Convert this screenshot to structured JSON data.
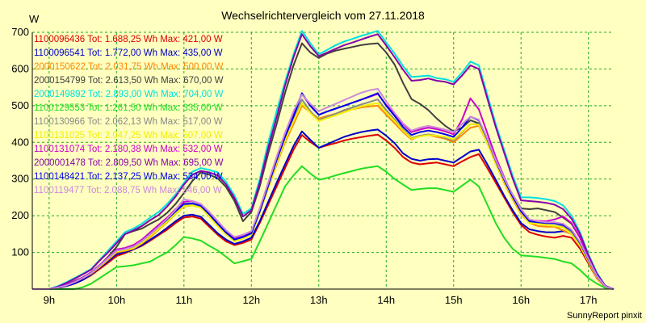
{
  "chart_data": {
    "type": "line",
    "title": "Wechselrichtervergleich vom 27.11.2018",
    "ylabel": "W",
    "xlabel": "",
    "footer": "SunnyReport pinxit",
    "ylim": [
      0,
      700
    ],
    "xlim": [
      8.75,
      17.375
    ],
    "grid": true,
    "legend_placement": "top-left",
    "y_ticks": [
      100,
      200,
      300,
      400,
      500,
      600,
      700
    ],
    "x_ticks": [
      {
        "value": 9,
        "label": "9h"
      },
      {
        "value": 10,
        "label": "10h"
      },
      {
        "value": 11,
        "label": "11h"
      },
      {
        "value": 12,
        "label": "12h"
      },
      {
        "value": 13,
        "label": "13h"
      },
      {
        "value": 14,
        "label": "14h"
      },
      {
        "value": 15,
        "label": "15h"
      },
      {
        "value": 16,
        "label": "16h"
      },
      {
        "value": 17,
        "label": "17h"
      }
    ],
    "x": [
      8.75,
      8.875,
      9.0,
      9.125,
      9.25,
      9.375,
      9.5,
      9.625,
      9.75,
      9.875,
      10.0,
      10.125,
      10.25,
      10.375,
      10.5,
      10.625,
      10.75,
      10.875,
      11.0,
      11.125,
      11.25,
      11.375,
      11.5,
      11.625,
      11.75,
      11.875,
      12.0,
      12.125,
      12.25,
      12.375,
      12.5,
      12.625,
      12.75,
      12.875,
      13.0,
      13.125,
      13.25,
      13.375,
      13.5,
      13.625,
      13.75,
      13.875,
      14.0,
      14.125,
      14.25,
      14.375,
      14.5,
      14.625,
      14.75,
      14.875,
      15.0,
      15.125,
      15.25,
      15.375,
      15.5,
      15.625,
      15.75,
      15.875,
      16.0,
      16.125,
      16.25,
      16.375,
      16.5,
      16.625,
      16.75,
      16.875,
      17.0,
      17.125,
      17.25,
      17.375
    ],
    "series": [
      {
        "name": "1100096436 Tot: 1.688,25 Wh Max: 421,00 W",
        "color": "#dd0000",
        "values": [
          0,
          0,
          0,
          3,
          8,
          15,
          25,
          38,
          55,
          72,
          90,
          98,
          108,
          118,
          132,
          147,
          162,
          180,
          195,
          198,
          192,
          170,
          148,
          130,
          120,
          126,
          135,
          180,
          230,
          280,
          330,
          380,
          420,
          401,
          385,
          392,
          398,
          405,
          410,
          414,
          418,
          421,
          405,
          385,
          360,
          345,
          340,
          343,
          345,
          340,
          335,
          348,
          360,
          368,
          330,
          290,
          250,
          210,
          175,
          155,
          148,
          143,
          140,
          145,
          140,
          110,
          70,
          30,
          6,
          0
        ]
      },
      {
        "name": "1100096541 Tot: 1.772,00 Wh Max: 435,00 W",
        "color": "#0000cc",
        "values": [
          0,
          0,
          0,
          3,
          8,
          15,
          25,
          40,
          58,
          76,
          95,
          101,
          108,
          120,
          135,
          150,
          167,
          185,
          200,
          203,
          197,
          175,
          152,
          135,
          123,
          130,
          140,
          185,
          238,
          290,
          340,
          390,
          430,
          407,
          385,
          395,
          405,
          415,
          422,
          428,
          432,
          435,
          418,
          398,
          370,
          355,
          350,
          354,
          355,
          350,
          345,
          360,
          375,
          380,
          340,
          298,
          255,
          215,
          180,
          163,
          158,
          155,
          155,
          158,
          152,
          120,
          78,
          35,
          7,
          0
        ]
      },
      {
        "name": "2000150622 Tot: 2.031,75 Wh Max: 500,00 W",
        "color": "#ff8800",
        "values": [
          0,
          0,
          0,
          4,
          10,
          19,
          30,
          42,
          60,
          80,
          100,
          104,
          110,
          124,
          142,
          162,
          182,
          205,
          225,
          228,
          222,
          200,
          174,
          152,
          135,
          143,
          152,
          210,
          275,
          340,
          400,
          450,
          500,
          482,
          465,
          472,
          478,
          485,
          490,
          495,
          498,
          500,
          475,
          452,
          428,
          408,
          418,
          420,
          415,
          410,
          400,
          420,
          440,
          445,
          398,
          342,
          290,
          245,
          205,
          180,
          172,
          170,
          170,
          160,
          150,
          118,
          75,
          32,
          7,
          0
        ]
      },
      {
        "name": "2000154799 Tot: 2.613,50 Wh Max: 670,00 W",
        "color": "#404040",
        "values": [
          0,
          0,
          0,
          5,
          12,
          22,
          32,
          45,
          65,
          88,
          115,
          150,
          158,
          165,
          178,
          190,
          208,
          232,
          262,
          295,
          318,
          312,
          302,
          278,
          240,
          185,
          210,
          280,
          370,
          450,
          535,
          610,
          670,
          645,
          630,
          642,
          650,
          655,
          660,
          665,
          668,
          670,
          645,
          612,
          562,
          518,
          505,
          488,
          465,
          445,
          430,
          440,
          460,
          452,
          405,
          350,
          300,
          258,
          220,
          218,
          220,
          215,
          210,
          195,
          178,
          140,
          90,
          40,
          8,
          0
        ]
      },
      {
        "name": "2000149892 Tot: 2.893,00 Wh Max: 704,00 W",
        "color": "#00e0e0",
        "values": [
          0,
          0,
          0,
          8,
          18,
          30,
          42,
          55,
          80,
          105,
          130,
          155,
          165,
          178,
          195,
          210,
          232,
          258,
          290,
          320,
          330,
          325,
          318,
          292,
          255,
          205,
          220,
          300,
          400,
          485,
          565,
          640,
          704,
          670,
          640,
          652,
          665,
          675,
          682,
          690,
          697,
          704,
          672,
          642,
          608,
          578,
          580,
          582,
          575,
          572,
          565,
          590,
          620,
          610,
          530,
          450,
          380,
          310,
          250,
          250,
          248,
          245,
          240,
          228,
          200,
          155,
          95,
          45,
          9,
          0
        ]
      },
      {
        "name": "1100129553 Tot: 1.261,50 Wh Max: 335,00 W",
        "color": "#22dd22",
        "values": [
          0,
          0,
          0,
          0,
          0,
          0,
          5,
          15,
          30,
          45,
          60,
          62,
          65,
          70,
          75,
          88,
          100,
          120,
          142,
          138,
          132,
          118,
          105,
          88,
          70,
          76,
          82,
          130,
          180,
          230,
          280,
          310,
          335,
          315,
          298,
          303,
          310,
          316,
          322,
          328,
          332,
          335,
          320,
          300,
          285,
          270,
          273,
          275,
          275,
          270,
          265,
          282,
          298,
          280,
          230,
          180,
          140,
          110,
          92,
          90,
          88,
          85,
          82,
          75,
          70,
          52,
          30,
          15,
          3,
          0
        ]
      },
      {
        "name": "1100130966 Tot: 2.062,13 Wh Max: 517,00 W",
        "color": "#888888",
        "values": [
          0,
          0,
          0,
          4,
          10,
          19,
          30,
          44,
          64,
          84,
          105,
          108,
          115,
          130,
          148,
          168,
          188,
          210,
          230,
          232,
          225,
          200,
          175,
          150,
          132,
          140,
          150,
          210,
          280,
          350,
          410,
          465,
          517,
          485,
          460,
          470,
          478,
          488,
          495,
          503,
          510,
          517,
          488,
          462,
          435,
          412,
          418,
          422,
          418,
          412,
          405,
          428,
          450,
          450,
          400,
          345,
          295,
          250,
          210,
          185,
          182,
          180,
          178,
          172,
          155,
          122,
          78,
          34,
          7,
          0
        ]
      },
      {
        "name": "1100131025 Tot: 2.047,25 Wh Max: 507,00 W",
        "color": "#f0f000",
        "values": [
          0,
          0,
          0,
          4,
          10,
          19,
          30,
          43,
          62,
          82,
          102,
          106,
          112,
          126,
          145,
          164,
          184,
          206,
          226,
          228,
          222,
          198,
          172,
          150,
          130,
          138,
          148,
          208,
          275,
          345,
          405,
          458,
          507,
          480,
          458,
          466,
          474,
          482,
          490,
          498,
          503,
          507,
          482,
          458,
          432,
          410,
          416,
          420,
          418,
          415,
          408,
          430,
          450,
          448,
          398,
          342,
          292,
          248,
          208,
          180,
          178,
          175,
          172,
          168,
          150,
          118,
          75,
          32,
          7,
          0
        ]
      },
      {
        "name": "1100131074 Tot: 2.180,38 Wh Max: 532,00 W",
        "color": "#cc00cc",
        "values": [
          0,
          0,
          0,
          5,
          12,
          21,
          32,
          46,
          66,
          86,
          108,
          112,
          120,
          135,
          155,
          175,
          195,
          218,
          238,
          240,
          232,
          210,
          185,
          160,
          138,
          145,
          155,
          218,
          290,
          360,
          425,
          480,
          532,
          500,
          475,
          484,
          492,
          500,
          508,
          516,
          524,
          532,
          502,
          476,
          450,
          428,
          435,
          440,
          436,
          430,
          422,
          462,
          520,
          490,
          425,
          360,
          305,
          255,
          215,
          188,
          186,
          185,
          190,
          198,
          180,
          140,
          88,
          40,
          8,
          0
        ]
      },
      {
        "name": "2000001478 Tot: 2.809,50 Wh Max: 695,00 W",
        "color": "#8800aa",
        "values": [
          0,
          0,
          0,
          6,
          16,
          28,
          40,
          53,
          78,
          100,
          125,
          150,
          160,
          172,
          188,
          202,
          225,
          252,
          285,
          312,
          322,
          318,
          310,
          285,
          248,
          198,
          215,
          290,
          385,
          468,
          555,
          632,
          695,
          662,
          635,
          645,
          655,
          665,
          672,
          680,
          688,
          695,
          664,
          632,
          598,
          568,
          570,
          574,
          568,
          565,
          558,
          582,
          610,
          600,
          520,
          442,
          372,
          302,
          242,
          240,
          238,
          235,
          230,
          218,
          192,
          150,
          92,
          42,
          9,
          0
        ]
      },
      {
        "name": "1100148421 Tot: 2.137,25 Wh Max: 534,00 W",
        "color": "#0000ee",
        "values": [
          0,
          0,
          0,
          4,
          10,
          19,
          30,
          44,
          64,
          84,
          105,
          109,
          116,
          131,
          150,
          170,
          190,
          212,
          232,
          234,
          227,
          204,
          178,
          154,
          135,
          142,
          152,
          212,
          282,
          352,
          415,
          470,
          534,
          500,
          475,
          484,
          492,
          500,
          508,
          516,
          525,
          534,
          500,
          472,
          442,
          420,
          428,
          432,
          428,
          422,
          415,
          440,
          470,
          460,
          408,
          350,
          298,
          252,
          212,
          185,
          182,
          180,
          180,
          175,
          160,
          125,
          80,
          35,
          7,
          0
        ]
      },
      {
        "name": "1100119477 Tot: 2.088,75 Wh Max: 546,00 W",
        "color": "#cc88dd",
        "values": [
          0,
          0,
          0,
          4,
          10,
          19,
          30,
          44,
          64,
          84,
          105,
          109,
          116,
          131,
          150,
          170,
          192,
          216,
          245,
          240,
          232,
          210,
          185,
          160,
          142,
          148,
          158,
          220,
          290,
          360,
          425,
          485,
          530,
          505,
          485,
          495,
          505,
          515,
          525,
          535,
          542,
          546,
          512,
          480,
          452,
          432,
          440,
          445,
          440,
          435,
          428,
          450,
          470,
          462,
          410,
          352,
          302,
          258,
          218,
          190,
          185,
          182,
          182,
          178,
          162,
          128,
          82,
          36,
          7,
          0
        ]
      }
    ]
  }
}
